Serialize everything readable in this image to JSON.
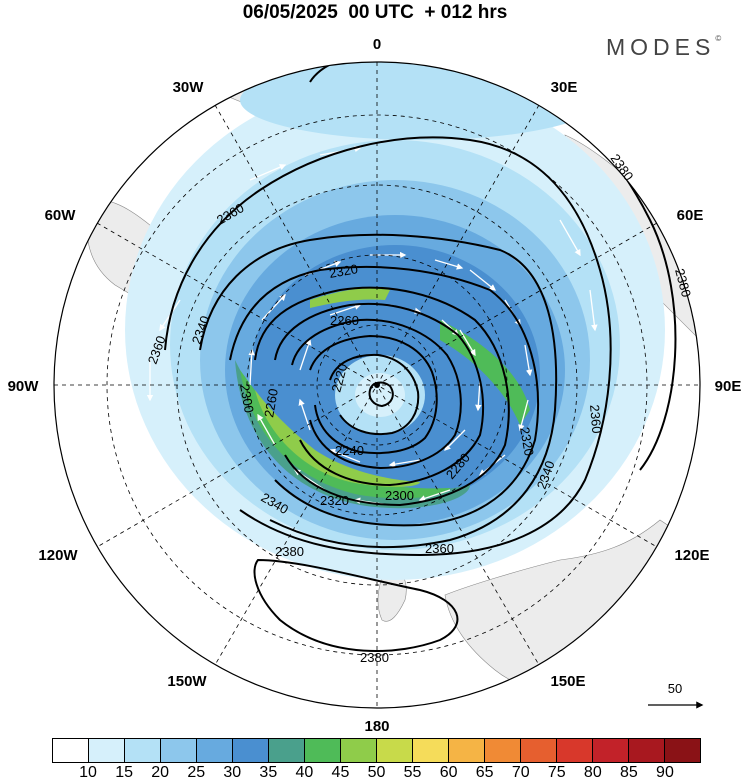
{
  "header": {
    "title": "06/05/2025  00 UTC  + 012 hrs",
    "brand": "MODES"
  },
  "lon_labels": {
    "l0": "0",
    "l30e": "30E",
    "l60e": "60E",
    "l90e": "90E",
    "l120e": "120E",
    "l150e": "150E",
    "l180": "180",
    "l150w": "150W",
    "l120w": "120W",
    "l90w": "90W",
    "l60w": "60W",
    "l30w": "30W"
  },
  "contour_labels": {
    "c1": "2380",
    "c2": "2380",
    "c3": "2380",
    "c4": "2380",
    "c5": "2360",
    "c6": "2360",
    "c7": "2360",
    "c8": "2360",
    "c9": "2340",
    "c10": "2340",
    "c11": "2340",
    "c12": "2320",
    "c13": "2320",
    "c14": "2320",
    "c15": "2300",
    "c16": "2300",
    "c17": "2280",
    "c18": "2260",
    "c19": "2260",
    "c20": "2240",
    "c21": "2220"
  },
  "vector_legend": {
    "value": "50"
  },
  "colorbar": {
    "colors": [
      "#ffffff",
      "#d6f0fb",
      "#b4e1f6",
      "#8dc7ec",
      "#67aadf",
      "#4a8fd0",
      "#4aa08c",
      "#4fbb58",
      "#8fcc4a",
      "#c8da4a",
      "#f5dc5a",
      "#f5b445",
      "#f08a35",
      "#e65f2f",
      "#d8382b",
      "#c22229",
      "#a8181f",
      "#8a1216"
    ],
    "labels": [
      "10",
      "15",
      "20",
      "25",
      "30",
      "35",
      "40",
      "45",
      "50",
      "55",
      "60",
      "65",
      "70",
      "75",
      "80",
      "85",
      "90"
    ]
  }
}
